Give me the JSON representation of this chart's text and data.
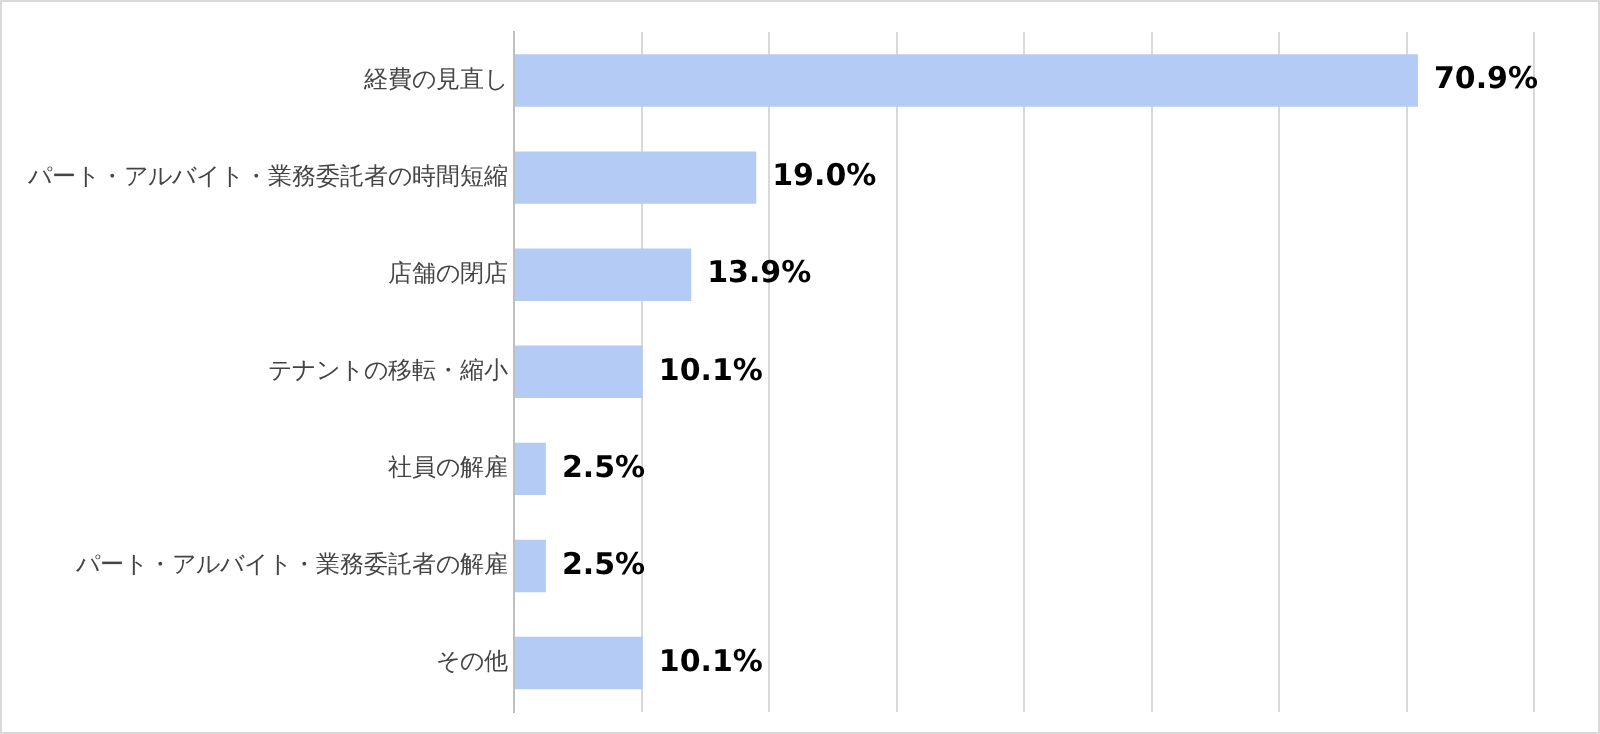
{
  "chart_data": {
    "type": "bar",
    "orientation": "horizontal",
    "categories": [
      "経費の見直し",
      "パート・アルバイト・業務委託者の時間短縮",
      "店舗の閉店",
      "テナントの移転・縮小",
      "社員の解雇",
      "パート・アルバイト・業務委託者の解雇",
      "その他"
    ],
    "values": [
      70.9,
      19.0,
      13.9,
      10.1,
      2.5,
      2.5,
      10.1
    ],
    "value_labels": [
      "70.9%",
      "19.0%",
      "13.9%",
      "10.1%",
      "2.5%",
      "2.5%",
      "10.1%"
    ],
    "color": "#b4cbf5",
    "xlim": [
      0,
      80
    ],
    "xticks": [
      {
        "value": 0,
        "label": null
      },
      {
        "value": 10,
        "label": null
      },
      {
        "value": 20,
        "label": null
      },
      {
        "value": 30,
        "label": null
      },
      {
        "value": 40,
        "label": null
      },
      {
        "value": 50,
        "label": null
      },
      {
        "value": 60,
        "label": null
      },
      {
        "value": 70,
        "label": null
      },
      {
        "value": 80,
        "label": null
      }
    ],
    "grid": "x",
    "tick_labels": "y",
    "legend": false
  }
}
